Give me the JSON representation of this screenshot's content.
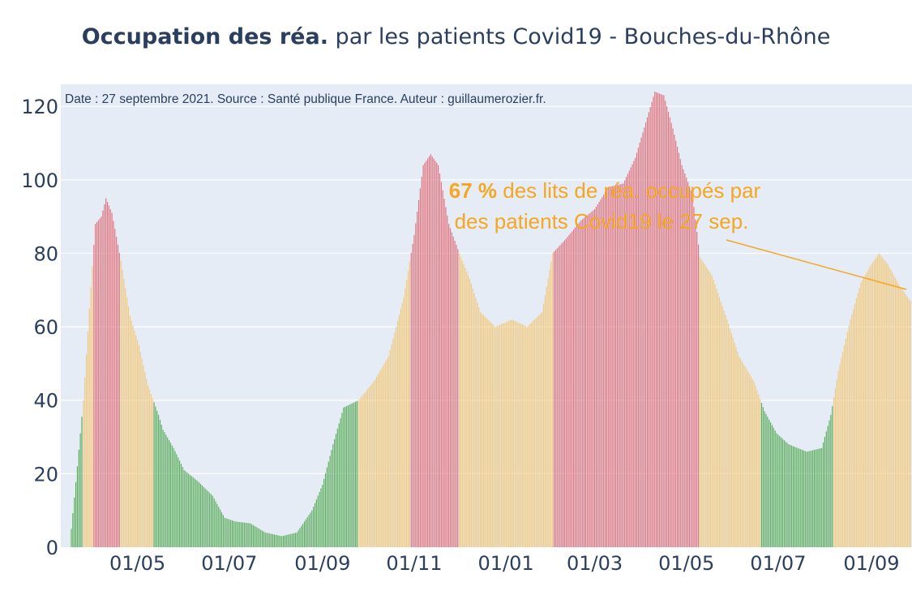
{
  "title_bold": "Occupation des réa.",
  "title_rest": " par les patients Covid19 - Bouches-du-Rhône",
  "chart_data": {
    "type": "bar",
    "ylim": [
      0,
      126
    ],
    "yticks": [
      0,
      20,
      40,
      60,
      80,
      100,
      120
    ],
    "xticks": [
      "01/05",
      "01/07",
      "01/09",
      "01/11",
      "01/01",
      "01/03",
      "01/05",
      "01/07",
      "01/09"
    ],
    "xtick_dates": [
      "2020-05-01",
      "2020-07-01",
      "2020-09-01",
      "2020-11-01",
      "2021-01-01",
      "2021-03-01",
      "2021-05-01",
      "2021-07-01",
      "2021-09-01"
    ],
    "x_range": [
      "2020-03-11",
      "2021-09-28"
    ],
    "grid": true,
    "colors": {
      "green": "#5aac5a",
      "orange": "#f2c87a",
      "red": "#e0727c",
      "plot_bg": "#e5ecf6",
      "annotation": "#f5a623"
    },
    "color_thresholds": {
      "green_below": 40,
      "red_above": 80
    },
    "keypoints": [
      [
        "2020-03-18",
        5
      ],
      [
        "2020-03-22",
        22
      ],
      [
        "2020-03-26",
        40
      ],
      [
        "2020-03-30",
        65
      ],
      [
        "2020-04-03",
        88
      ],
      [
        "2020-04-07",
        90
      ],
      [
        "2020-04-10",
        95
      ],
      [
        "2020-04-14",
        91
      ],
      [
        "2020-04-20",
        78
      ],
      [
        "2020-04-26",
        63
      ],
      [
        "2020-05-02",
        55
      ],
      [
        "2020-05-08",
        44
      ],
      [
        "2020-05-15",
        36
      ],
      [
        "2020-05-18",
        32
      ],
      [
        "2020-05-25",
        27
      ],
      [
        "2020-06-01",
        21
      ],
      [
        "2020-06-10",
        18
      ],
      [
        "2020-06-20",
        14
      ],
      [
        "2020-06-28",
        8
      ],
      [
        "2020-07-05",
        7
      ],
      [
        "2020-07-15",
        6.5
      ],
      [
        "2020-07-25",
        4
      ],
      [
        "2020-08-05",
        3
      ],
      [
        "2020-08-15",
        4
      ],
      [
        "2020-08-25",
        10
      ],
      [
        "2020-09-01",
        17
      ],
      [
        "2020-09-08",
        28
      ],
      [
        "2020-09-15",
        38
      ],
      [
        "2020-09-25",
        40
      ],
      [
        "2020-10-05",
        45
      ],
      [
        "2020-10-15",
        52
      ],
      [
        "2020-10-25",
        68
      ],
      [
        "2020-11-01",
        85
      ],
      [
        "2020-11-07",
        104
      ],
      [
        "2020-11-12",
        107
      ],
      [
        "2020-11-17",
        104
      ],
      [
        "2020-11-24",
        88
      ],
      [
        "2020-12-01",
        80
      ],
      [
        "2020-12-08",
        73
      ],
      [
        "2020-12-15",
        64
      ],
      [
        "2020-12-25",
        60
      ],
      [
        "2021-01-05",
        62
      ],
      [
        "2021-01-15",
        60
      ],
      [
        "2021-01-25",
        64
      ],
      [
        "2021-02-01",
        80
      ],
      [
        "2021-02-10",
        84
      ],
      [
        "2021-02-20",
        89
      ],
      [
        "2021-03-01",
        92
      ],
      [
        "2021-03-10",
        98
      ],
      [
        "2021-03-20",
        99
      ],
      [
        "2021-03-28",
        106
      ],
      [
        "2021-04-05",
        117
      ],
      [
        "2021-04-10",
        124
      ],
      [
        "2021-04-16",
        123
      ],
      [
        "2021-04-22",
        114
      ],
      [
        "2021-04-28",
        104
      ],
      [
        "2021-05-05",
        96
      ],
      [
        "2021-05-10",
        79
      ],
      [
        "2021-05-18",
        74
      ],
      [
        "2021-05-28",
        62
      ],
      [
        "2021-06-05",
        52
      ],
      [
        "2021-06-15",
        45
      ],
      [
        "2021-06-22",
        37
      ],
      [
        "2021-06-30",
        31
      ],
      [
        "2021-07-08",
        28
      ],
      [
        "2021-07-20",
        26
      ],
      [
        "2021-07-30",
        27
      ],
      [
        "2021-08-05",
        36
      ],
      [
        "2021-08-10",
        48
      ],
      [
        "2021-08-18",
        62
      ],
      [
        "2021-08-25",
        72
      ],
      [
        "2021-09-01",
        77
      ],
      [
        "2021-09-06",
        80
      ],
      [
        "2021-09-12",
        77
      ],
      [
        "2021-09-20",
        71
      ],
      [
        "2021-09-27",
        67
      ]
    ],
    "texts": {
      "source": "Date : 27 septembre 2021. Source : Santé publique France. Auteur : guillaumerozier.fr.",
      "annotation_value": "67  %",
      "annotation_line1_rest": " des lits de réa. occupés par",
      "annotation_line2": "des patients Covid19 le 27 sep."
    }
  }
}
